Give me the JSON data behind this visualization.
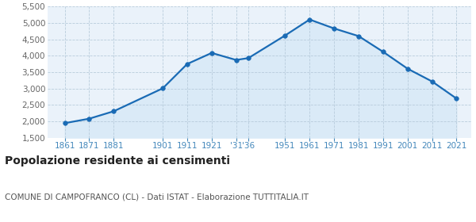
{
  "years": [
    1861,
    1871,
    1881,
    1901,
    1911,
    1921,
    1931,
    1936,
    1951,
    1961,
    1971,
    1981,
    1991,
    2001,
    2011,
    2021
  ],
  "population": [
    1942,
    2079,
    2306,
    3005,
    3749,
    4087,
    3872,
    3930,
    4621,
    5107,
    4834,
    4601,
    4122,
    3606,
    3216,
    2693
  ],
  "ylim": [
    1500,
    5500
  ],
  "yticks": [
    1500,
    2000,
    2500,
    3000,
    3500,
    4000,
    4500,
    5000,
    5500
  ],
  "line_color": "#1a6bb5",
  "fill_color": "#daeaf7",
  "marker_color": "#1a6bb5",
  "grid_color": "#b8ccdc",
  "background_color": "#eaf2fa",
  "title": "Popolazione residente ai censimenti",
  "subtitle": "COMUNE DI CAMPOFRANCO (CL) - Dati ISTAT - Elaborazione TUTTITALIA.IT",
  "title_fontsize": 10,
  "subtitle_fontsize": 7.5,
  "tick_color": "#4488bb",
  "tick_fontsize": 7.5,
  "ytick_color": "#666666",
  "xlim_left": 1854,
  "xlim_right": 2027
}
